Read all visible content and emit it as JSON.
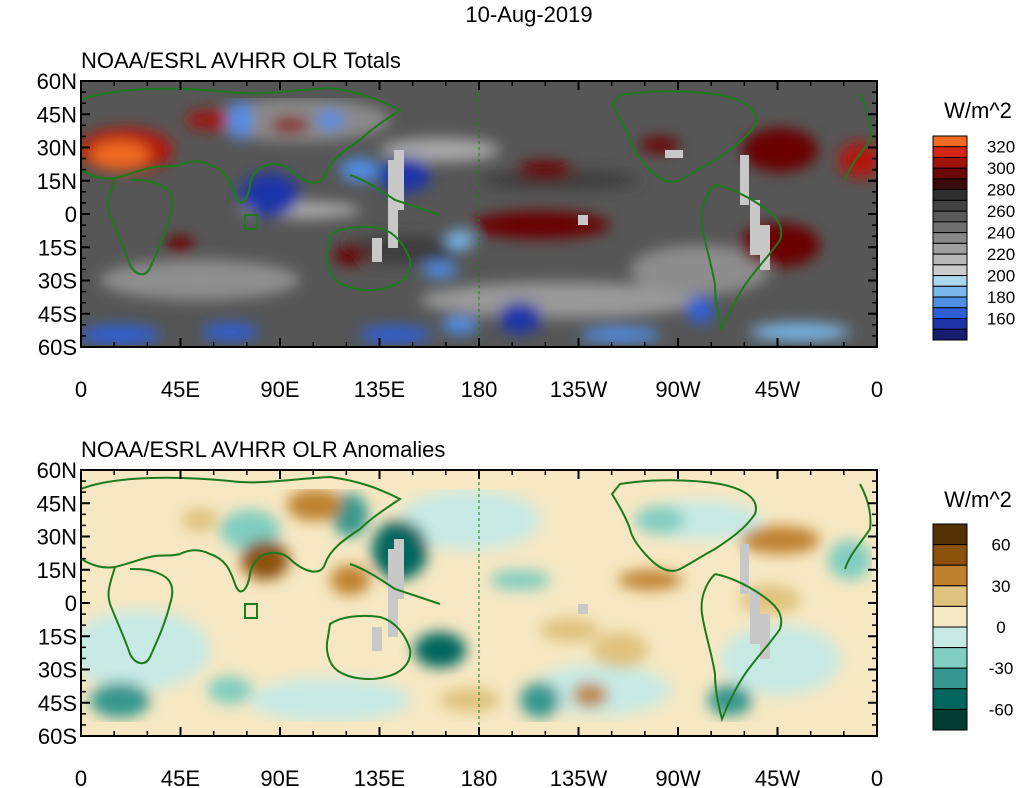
{
  "date": "10-Aug-2019",
  "panels": [
    {
      "title": "NOAA/ESRL AVHRR OLR Totals",
      "units": "W/m^2",
      "legend_labels": [
        "320",
        "300",
        "280",
        "260",
        "240",
        "220",
        "200",
        "180",
        "160"
      ],
      "legend_colors": [
        "#f06a23",
        "#d4260f",
        "#a0130c",
        "#6a0606",
        "#3a0b0b",
        "#2f2f2f",
        "#444444",
        "#5a5a5a",
        "#707070",
        "#888888",
        "#a0a0a0",
        "#b8b8b8",
        "#cccccc",
        "#a9d7ee",
        "#7ab7ea",
        "#4f8ee6",
        "#2d5fd6",
        "#1e34a8",
        "#141d6e"
      ]
    },
    {
      "title": "NOAA/ESRL AVHRR OLR Anomalies",
      "units": "W/m^2",
      "legend_labels": [
        "60",
        "30",
        "0",
        "-30",
        "-60"
      ],
      "legend_colors": [
        "#543005",
        "#8c510a",
        "#bf812d",
        "#dfc27d",
        "#f6e8c3",
        "#c7eae5",
        "#80cdc1",
        "#35978f",
        "#01665e",
        "#003c30"
      ]
    }
  ],
  "lat_labels": [
    "60N",
    "45N",
    "30N",
    "15N",
    "0",
    "15S",
    "30S",
    "45S",
    "60S"
  ],
  "lon_labels": [
    "0",
    "45E",
    "90E",
    "135E",
    "180",
    "135W",
    "90W",
    "45W",
    "0"
  ]
}
